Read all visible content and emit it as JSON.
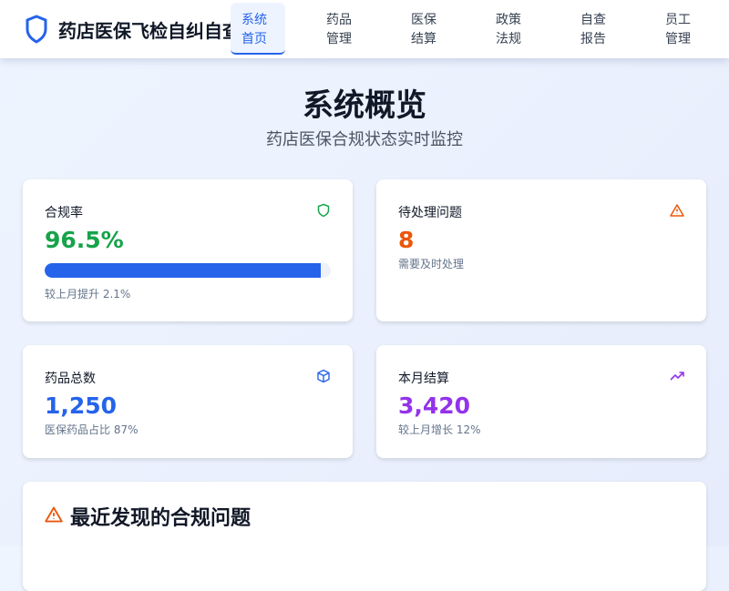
{
  "header": {
    "title": "药店医保飞检自纠自查系统",
    "nav": [
      {
        "label1": "系统",
        "label2": "首页",
        "active": true
      },
      {
        "label1": "药品",
        "label2": "管理"
      },
      {
        "label1": "医保",
        "label2": "结算"
      },
      {
        "label1": "政策",
        "label2": "法规"
      },
      {
        "label1": "自查",
        "label2": "报告"
      },
      {
        "label1": "员工",
        "label2": "管理"
      }
    ]
  },
  "hero": {
    "title": "系统概览",
    "subtitle": "药店医保合规状态实时监控"
  },
  "cards": [
    {
      "label": "合规率",
      "value": "96.5%",
      "note": "较上月提升 2.1%",
      "progress": 96.5,
      "icon": "shield-icon",
      "color": "#16a34a"
    },
    {
      "label": "待处理问题",
      "value": "8",
      "note": "需要及时处理",
      "icon": "warning-icon",
      "color": "#ea580c"
    },
    {
      "label": "药品总数",
      "value": "1,250",
      "note": "医保药品占比 87%",
      "icon": "box-icon",
      "color": "#2563eb"
    },
    {
      "label": "本月结算",
      "value": "3,420",
      "note": "较上月增长 12%",
      "icon": "trending-up-icon",
      "color": "#9333ea"
    }
  ],
  "issues": {
    "title": "最近发现的合规问题",
    "icon": "warning-icon"
  }
}
